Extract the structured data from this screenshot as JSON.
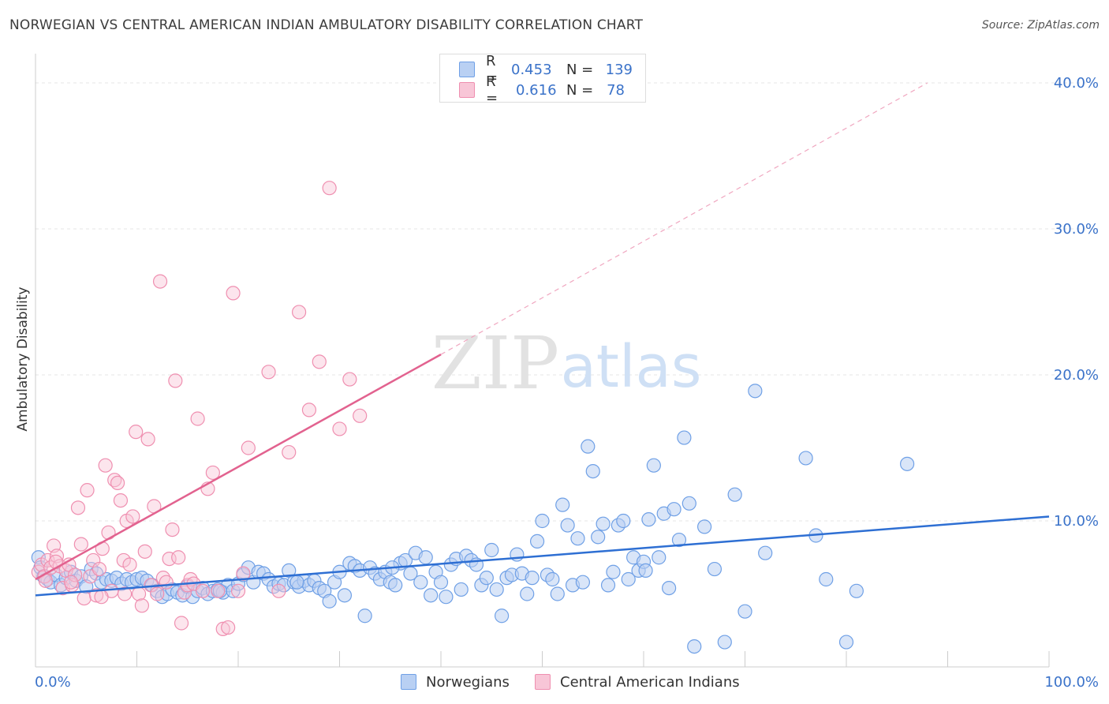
{
  "header": {
    "title": "NORWEGIAN VS CENTRAL AMERICAN INDIAN AMBULATORY DISABILITY CORRELATION CHART",
    "source": "Source: ZipAtlas.com"
  },
  "watermark": {
    "zip": "ZIP",
    "atlas": "atlas"
  },
  "legend": {
    "rows": [
      {
        "r_label": "R =",
        "r_value": "0.453",
        "n_label": "N =",
        "n_value": "139",
        "color": "#6fa0e6",
        "fill": "#b9d0f3"
      },
      {
        "r_label": "R =",
        "r_value": "0.616",
        "n_label": "N =",
        "n_value": "78",
        "color": "#ef8fb0",
        "fill": "#f8c6d7"
      }
    ]
  },
  "bottom_legend": {
    "items": [
      {
        "label": "Norwegians",
        "color": "#6fa0e6",
        "fill": "#b9d0f3"
      },
      {
        "label": "Central American Indians",
        "color": "#ef8fb0",
        "fill": "#f8c6d7"
      }
    ]
  },
  "chart_data": {
    "type": "scatter",
    "title": "NORWEGIAN VS CENTRAL AMERICAN INDIAN AMBULATORY DISABILITY CORRELATION CHART",
    "xlabel": "",
    "ylabel": "Ambulatory Disability",
    "xlim": [
      0,
      100
    ],
    "ylim": [
      0,
      42
    ],
    "x_tick_labels": [
      "0.0%",
      "100.0%"
    ],
    "y_ticks": [
      10,
      20,
      30,
      40
    ],
    "y_tick_labels": [
      "10.0%",
      "20.0%",
      "30.0%",
      "40.0%"
    ],
    "grid": true,
    "legend_position": "top-center",
    "colors": {
      "blue": "#3a72c9",
      "blue_line": "#2e6fd3",
      "pink_line": "#e2628f"
    },
    "series": [
      {
        "name": "Norwegians",
        "r": 0.453,
        "n": 139,
        "color": "#6fa0e6",
        "fill": "#b9d0f3",
        "trendline": {
          "x": [
            0,
            100
          ],
          "y": [
            4.9,
            10.3
          ]
        },
        "points": [
          [
            0.3,
            7.5
          ],
          [
            0.5,
            6.8
          ],
          [
            0.8,
            6.2
          ],
          [
            1.2,
            6.0
          ],
          [
            1.5,
            5.8
          ],
          [
            2.0,
            6.3
          ],
          [
            2.5,
            5.6
          ],
          [
            3.0,
            6.1
          ],
          [
            3.5,
            6.5
          ],
          [
            4.0,
            5.9
          ],
          [
            4.5,
            6.2
          ],
          [
            5.0,
            5.5
          ],
          [
            5.5,
            6.7
          ],
          [
            6.0,
            6.4
          ],
          [
            6.5,
            5.8
          ],
          [
            7.0,
            6.0
          ],
          [
            7.5,
            5.9
          ],
          [
            8.0,
            6.1
          ],
          [
            8.5,
            5.7
          ],
          [
            9.0,
            6.0
          ],
          [
            9.5,
            5.8
          ],
          [
            10.0,
            6.0
          ],
          [
            10.5,
            6.1
          ],
          [
            11.0,
            5.9
          ],
          [
            11.5,
            5.6
          ],
          [
            12.0,
            5.2
          ],
          [
            12.5,
            4.8
          ],
          [
            13.0,
            5.0
          ],
          [
            13.5,
            5.3
          ],
          [
            14.0,
            5.1
          ],
          [
            14.5,
            4.9
          ],
          [
            15.0,
            5.5
          ],
          [
            15.5,
            4.8
          ],
          [
            16.0,
            5.2
          ],
          [
            16.5,
            5.4
          ],
          [
            17.0,
            5.0
          ],
          [
            17.5,
            5.2
          ],
          [
            18.0,
            5.3
          ],
          [
            18.5,
            5.1
          ],
          [
            19.0,
            5.6
          ],
          [
            19.5,
            5.2
          ],
          [
            20.0,
            5.7
          ],
          [
            20.5,
            6.3
          ],
          [
            21.0,
            6.8
          ],
          [
            21.5,
            5.8
          ],
          [
            22.0,
            6.5
          ],
          [
            22.5,
            6.4
          ],
          [
            23.0,
            6.0
          ],
          [
            23.5,
            5.5
          ],
          [
            24.0,
            5.7
          ],
          [
            24.5,
            5.6
          ],
          [
            25.0,
            6.6
          ],
          [
            25.5,
            5.8
          ],
          [
            26.0,
            5.5
          ],
          [
            26.5,
            5.9
          ],
          [
            27.0,
            5.6
          ],
          [
            27.5,
            5.9
          ],
          [
            28.0,
            5.4
          ],
          [
            28.5,
            5.2
          ],
          [
            29.0,
            4.5
          ],
          [
            29.5,
            5.8
          ],
          [
            30.0,
            6.5
          ],
          [
            30.5,
            4.9
          ],
          [
            31.0,
            7.1
          ],
          [
            31.5,
            6.9
          ],
          [
            32.0,
            6.6
          ],
          [
            32.5,
            3.5
          ],
          [
            33.0,
            6.8
          ],
          [
            33.5,
            6.4
          ],
          [
            34.0,
            6.0
          ],
          [
            34.5,
            6.5
          ],
          [
            35.0,
            5.8
          ],
          [
            35.5,
            5.6
          ],
          [
            36.0,
            7.1
          ],
          [
            36.5,
            7.3
          ],
          [
            37.0,
            6.4
          ],
          [
            37.5,
            7.8
          ],
          [
            38.0,
            5.8
          ],
          [
            38.5,
            7.5
          ],
          [
            39.0,
            4.9
          ],
          [
            39.5,
            6.5
          ],
          [
            40.0,
            5.8
          ],
          [
            40.5,
            4.8
          ],
          [
            41.0,
            7.0
          ],
          [
            41.5,
            7.4
          ],
          [
            42.0,
            5.3
          ],
          [
            42.5,
            7.6
          ],
          [
            43.0,
            7.3
          ],
          [
            43.5,
            7.0
          ],
          [
            44.0,
            5.6
          ],
          [
            44.5,
            6.1
          ],
          [
            45.0,
            8.0
          ],
          [
            45.5,
            5.3
          ],
          [
            46.0,
            3.5
          ],
          [
            46.5,
            6.1
          ],
          [
            47.0,
            6.3
          ],
          [
            47.5,
            7.7
          ],
          [
            48.0,
            6.4
          ],
          [
            48.5,
            5.0
          ],
          [
            49.0,
            6.1
          ],
          [
            49.5,
            8.6
          ],
          [
            50.0,
            10.0
          ],
          [
            50.5,
            6.3
          ],
          [
            51.0,
            6.0
          ],
          [
            51.5,
            5.0
          ],
          [
            52.0,
            11.1
          ],
          [
            52.5,
            9.7
          ],
          [
            53.0,
            5.6
          ],
          [
            53.5,
            8.8
          ],
          [
            54.0,
            5.8
          ],
          [
            54.5,
            15.1
          ],
          [
            55.0,
            13.4
          ],
          [
            55.5,
            8.9
          ],
          [
            56.0,
            9.8
          ],
          [
            56.5,
            5.6
          ],
          [
            57.0,
            6.5
          ],
          [
            57.5,
            9.7
          ],
          [
            58.0,
            10.0
          ],
          [
            58.5,
            6.0
          ],
          [
            59.0,
            7.5
          ],
          [
            59.5,
            6.6
          ],
          [
            60.0,
            7.2
          ],
          [
            60.5,
            10.1
          ],
          [
            61.0,
            13.8
          ],
          [
            61.5,
            7.5
          ],
          [
            62.0,
            10.5
          ],
          [
            62.5,
            5.4
          ],
          [
            63.0,
            10.8
          ],
          [
            63.5,
            8.7
          ],
          [
            64.0,
            15.7
          ],
          [
            64.5,
            11.2
          ],
          [
            65.0,
            1.4
          ],
          [
            66.0,
            9.6
          ],
          [
            67.0,
            6.7
          ],
          [
            68.0,
            1.7
          ],
          [
            69.0,
            11.8
          ],
          [
            70.0,
            3.8
          ],
          [
            71.0,
            18.9
          ],
          [
            72.0,
            7.8
          ],
          [
            76.0,
            14.3
          ],
          [
            77.0,
            9.0
          ],
          [
            78.0,
            6.0
          ],
          [
            80.0,
            1.7
          ],
          [
            81.0,
            5.2
          ],
          [
            86.0,
            13.9
          ],
          [
            60.2,
            6.6
          ],
          [
            35.2,
            6.8
          ],
          [
            25.8,
            5.8
          ],
          [
            18.2,
            5.2
          ]
        ]
      },
      {
        "name": "Central American Indians",
        "r": 0.616,
        "n": 78,
        "color": "#ef8fb0",
        "fill": "#f8c6d7",
        "trendline": {
          "x": [
            0,
            40
          ],
          "y": [
            6.0,
            21.4
          ]
        },
        "trendline_extended": {
          "x": [
            40,
            88
          ],
          "y": [
            21.4,
            40.0
          ]
        },
        "points": [
          [
            0.3,
            6.5
          ],
          [
            0.6,
            7.0
          ],
          [
            0.9,
            6.2
          ],
          [
            1.2,
            7.3
          ],
          [
            1.5,
            6.8
          ],
          [
            1.8,
            8.3
          ],
          [
            2.1,
            7.6
          ],
          [
            2.4,
            6.9
          ],
          [
            2.7,
            5.4
          ],
          [
            3.0,
            6.6
          ],
          [
            3.3,
            7.0
          ],
          [
            3.6,
            5.6
          ],
          [
            3.9,
            6.3
          ],
          [
            4.2,
            10.9
          ],
          [
            4.5,
            8.4
          ],
          [
            4.8,
            4.7
          ],
          [
            5.1,
            12.1
          ],
          [
            5.4,
            6.2
          ],
          [
            5.7,
            7.3
          ],
          [
            6.0,
            4.9
          ],
          [
            6.3,
            6.7
          ],
          [
            6.6,
            8.1
          ],
          [
            6.9,
            13.8
          ],
          [
            7.2,
            9.2
          ],
          [
            7.5,
            5.2
          ],
          [
            7.8,
            12.8
          ],
          [
            8.1,
            12.6
          ],
          [
            8.4,
            11.4
          ],
          [
            8.7,
            7.3
          ],
          [
            9.0,
            10.0
          ],
          [
            9.3,
            7.0
          ],
          [
            9.6,
            10.3
          ],
          [
            9.9,
            16.1
          ],
          [
            10.2,
            5.0
          ],
          [
            10.5,
            4.2
          ],
          [
            10.8,
            7.9
          ],
          [
            11.1,
            15.6
          ],
          [
            11.4,
            5.6
          ],
          [
            11.7,
            11.0
          ],
          [
            12.0,
            5.0
          ],
          [
            12.3,
            26.4
          ],
          [
            12.6,
            6.1
          ],
          [
            12.9,
            5.8
          ],
          [
            13.2,
            7.4
          ],
          [
            13.5,
            9.4
          ],
          [
            13.8,
            19.6
          ],
          [
            14.1,
            7.5
          ],
          [
            14.4,
            3.0
          ],
          [
            14.7,
            5.1
          ],
          [
            15.0,
            5.6
          ],
          [
            15.3,
            6.0
          ],
          [
            15.6,
            5.7
          ],
          [
            16.0,
            17.0
          ],
          [
            16.5,
            5.2
          ],
          [
            17.0,
            12.2
          ],
          [
            17.5,
            13.3
          ],
          [
            18.0,
            5.2
          ],
          [
            18.5,
            2.6
          ],
          [
            19.0,
            2.7
          ],
          [
            19.5,
            25.6
          ],
          [
            20.0,
            5.2
          ],
          [
            20.5,
            6.4
          ],
          [
            21.0,
            15.0
          ],
          [
            23.0,
            20.2
          ],
          [
            25.0,
            14.7
          ],
          [
            26.0,
            24.3
          ],
          [
            27.0,
            17.6
          ],
          [
            28.0,
            20.9
          ],
          [
            29.0,
            32.8
          ],
          [
            30.0,
            16.3
          ],
          [
            31.0,
            19.7
          ],
          [
            32.0,
            17.2
          ],
          [
            24.0,
            5.2
          ],
          [
            2.0,
            7.2
          ],
          [
            1.0,
            5.9
          ],
          [
            3.5,
            5.8
          ],
          [
            6.5,
            4.8
          ],
          [
            8.8,
            5.0
          ]
        ]
      }
    ]
  }
}
